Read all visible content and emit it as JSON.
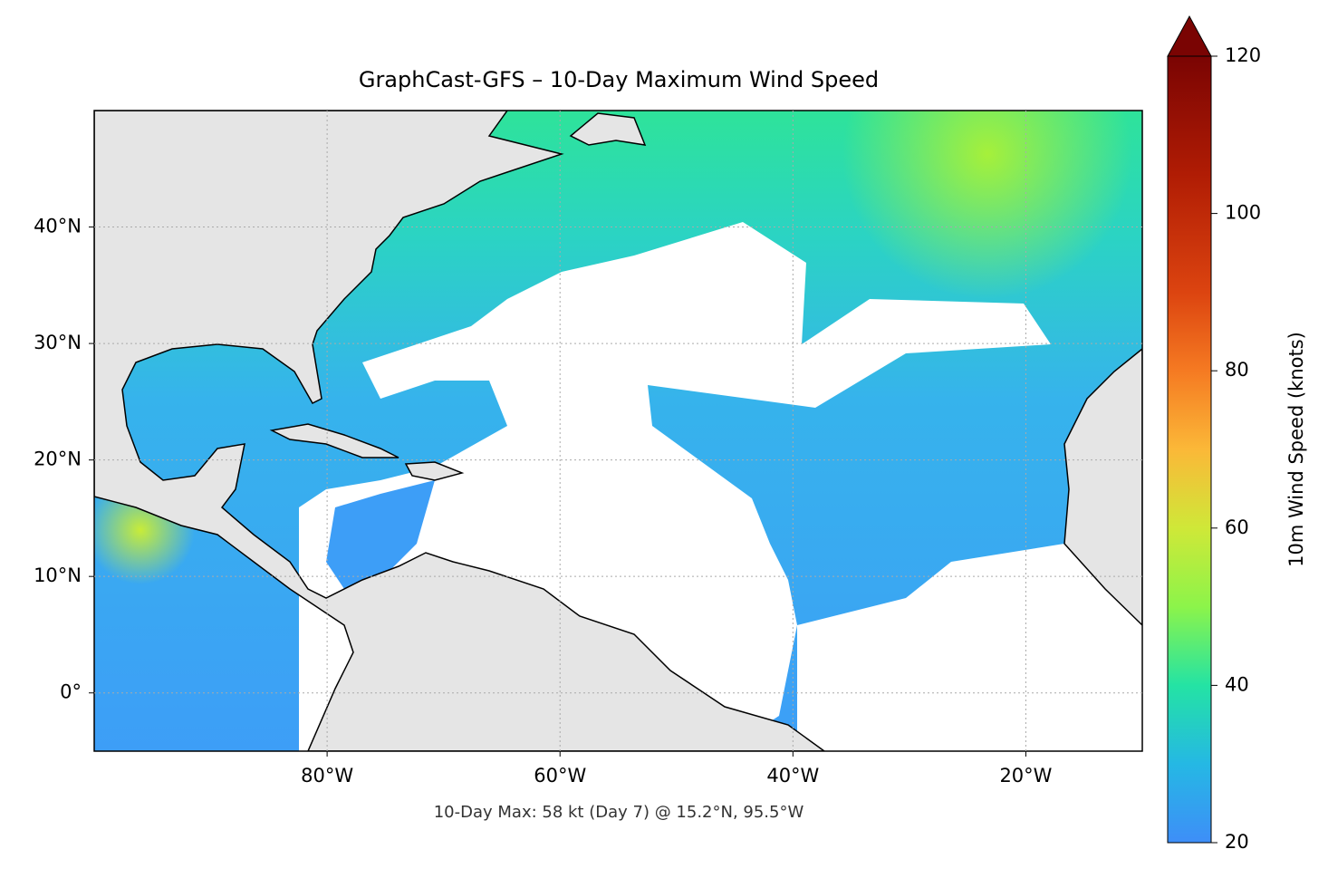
{
  "map": {
    "title": "GraphCast-GFS – 10-Day Maximum Wind Speed",
    "footnote": "10-Day Max: 58 kt (Day 7) @ 15.2°N, 95.5°W",
    "xlim": [
      -100,
      -10
    ],
    "ylim": [
      -5,
      50
    ],
    "xticks": [
      {
        "value": -80,
        "label": "80°W"
      },
      {
        "value": -60,
        "label": "60°W"
      },
      {
        "value": -40,
        "label": "40°W"
      },
      {
        "value": -20,
        "label": "20°W"
      }
    ],
    "yticks": [
      {
        "value": 0,
        "label": "0°"
      },
      {
        "value": 10,
        "label": "10°N"
      },
      {
        "value": 20,
        "label": "20°N"
      },
      {
        "value": 30,
        "label": "30°N"
      },
      {
        "value": 40,
        "label": "40°N"
      }
    ],
    "grid": true,
    "colorbar": {
      "label": "10m Wind Speed (knots)",
      "lim": [
        20,
        120
      ],
      "ticks": [
        20,
        40,
        60,
        80,
        100,
        120
      ]
    }
  }
}
